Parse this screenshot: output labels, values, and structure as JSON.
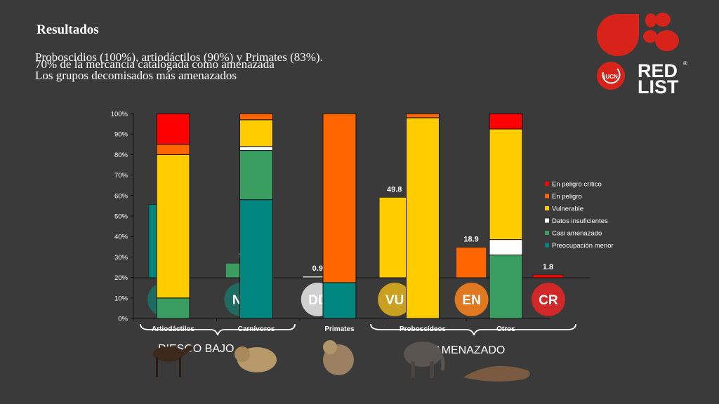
{
  "slide": {
    "title": "Resultados",
    "subtitle_lines": [
      "Proboscidios (100%), artiodáctilos (90%) y Primates (83%).",
      "70% de la mercancía catalogada como amenazada",
      "Los grupos decomisados más amenazados"
    ]
  },
  "logo": {
    "org": "IUCN",
    "line1": "RED",
    "line2": "LIST",
    "mark": "®"
  },
  "background_chart": {
    "categories": [
      "LC",
      "NT",
      "DD",
      "VU",
      "EN",
      "CR"
    ],
    "values": [
      45.3,
      9,
      0.9,
      49.8,
      18.9,
      1.8
    ],
    "colors": [
      "#00857f",
      "#3a9e62",
      "#ffffff",
      "#ffcc00",
      "#ff6600",
      "#ff0000"
    ],
    "value_labels": [
      "",
      "9",
      "0.9",
      "49.8",
      "18.9",
      "1.8"
    ],
    "badges": [
      {
        "code": "LC",
        "color": "#1e6b62",
        "text_color": "#ffffff"
      },
      {
        "code": "NT",
        "color": "#1e6b62",
        "text_color": "#ffffff"
      },
      {
        "code": "DD",
        "color": "#d0d0d0",
        "text_color": "#ffffff"
      },
      {
        "code": "VU",
        "color": "#c9a020",
        "text_color": "#ffffff"
      },
      {
        "code": "EN",
        "color": "#e07820",
        "text_color": "#ffffff"
      },
      {
        "code": "CR",
        "color": "#d02828",
        "text_color": "#ffffff"
      }
    ],
    "group_labels": [
      "RIESGO BAJO",
      "AMENAZADO"
    ]
  },
  "chart_data": {
    "type": "bar",
    "stacked": true,
    "categories": [
      "Artiodáctilos",
      "Carnívoros",
      "Primates",
      "Proboscídeos",
      "Otros"
    ],
    "ylim": [
      0,
      100
    ],
    "y_ticks": [
      "0%",
      "10%",
      "20%",
      "30%",
      "40%",
      "50%",
      "60%",
      "70%",
      "80%",
      "90%",
      "100%"
    ],
    "series": [
      {
        "name": "Preocupación menor",
        "color": "#00857f",
        "values": [
          0,
          58,
          17.5,
          0,
          0
        ]
      },
      {
        "name": "Casi amenazado",
        "color": "#3a9e62",
        "values": [
          10,
          24,
          0,
          0,
          31
        ]
      },
      {
        "name": "Datos insuficientes",
        "color": "#ffffff",
        "values": [
          0,
          2,
          0,
          0,
          7.5
        ]
      },
      {
        "name": "Vulnerable",
        "color": "#ffcc00",
        "values": [
          70,
          13,
          0,
          98,
          54
        ]
      },
      {
        "name": "En peligro",
        "color": "#ff6600",
        "values": [
          5,
          3,
          82.5,
          2,
          0
        ]
      },
      {
        "name": "En peligro crítico",
        "color": "#ff0000",
        "values": [
          15,
          0,
          0,
          0,
          7.5
        ]
      }
    ],
    "legend_order": [
      "En peligro crítico",
      "En peligro",
      "Vulnerable",
      "Datos insuficientes",
      "Casi amenazado",
      "Preocupación menor"
    ],
    "legend_position": "right",
    "grid": false
  }
}
